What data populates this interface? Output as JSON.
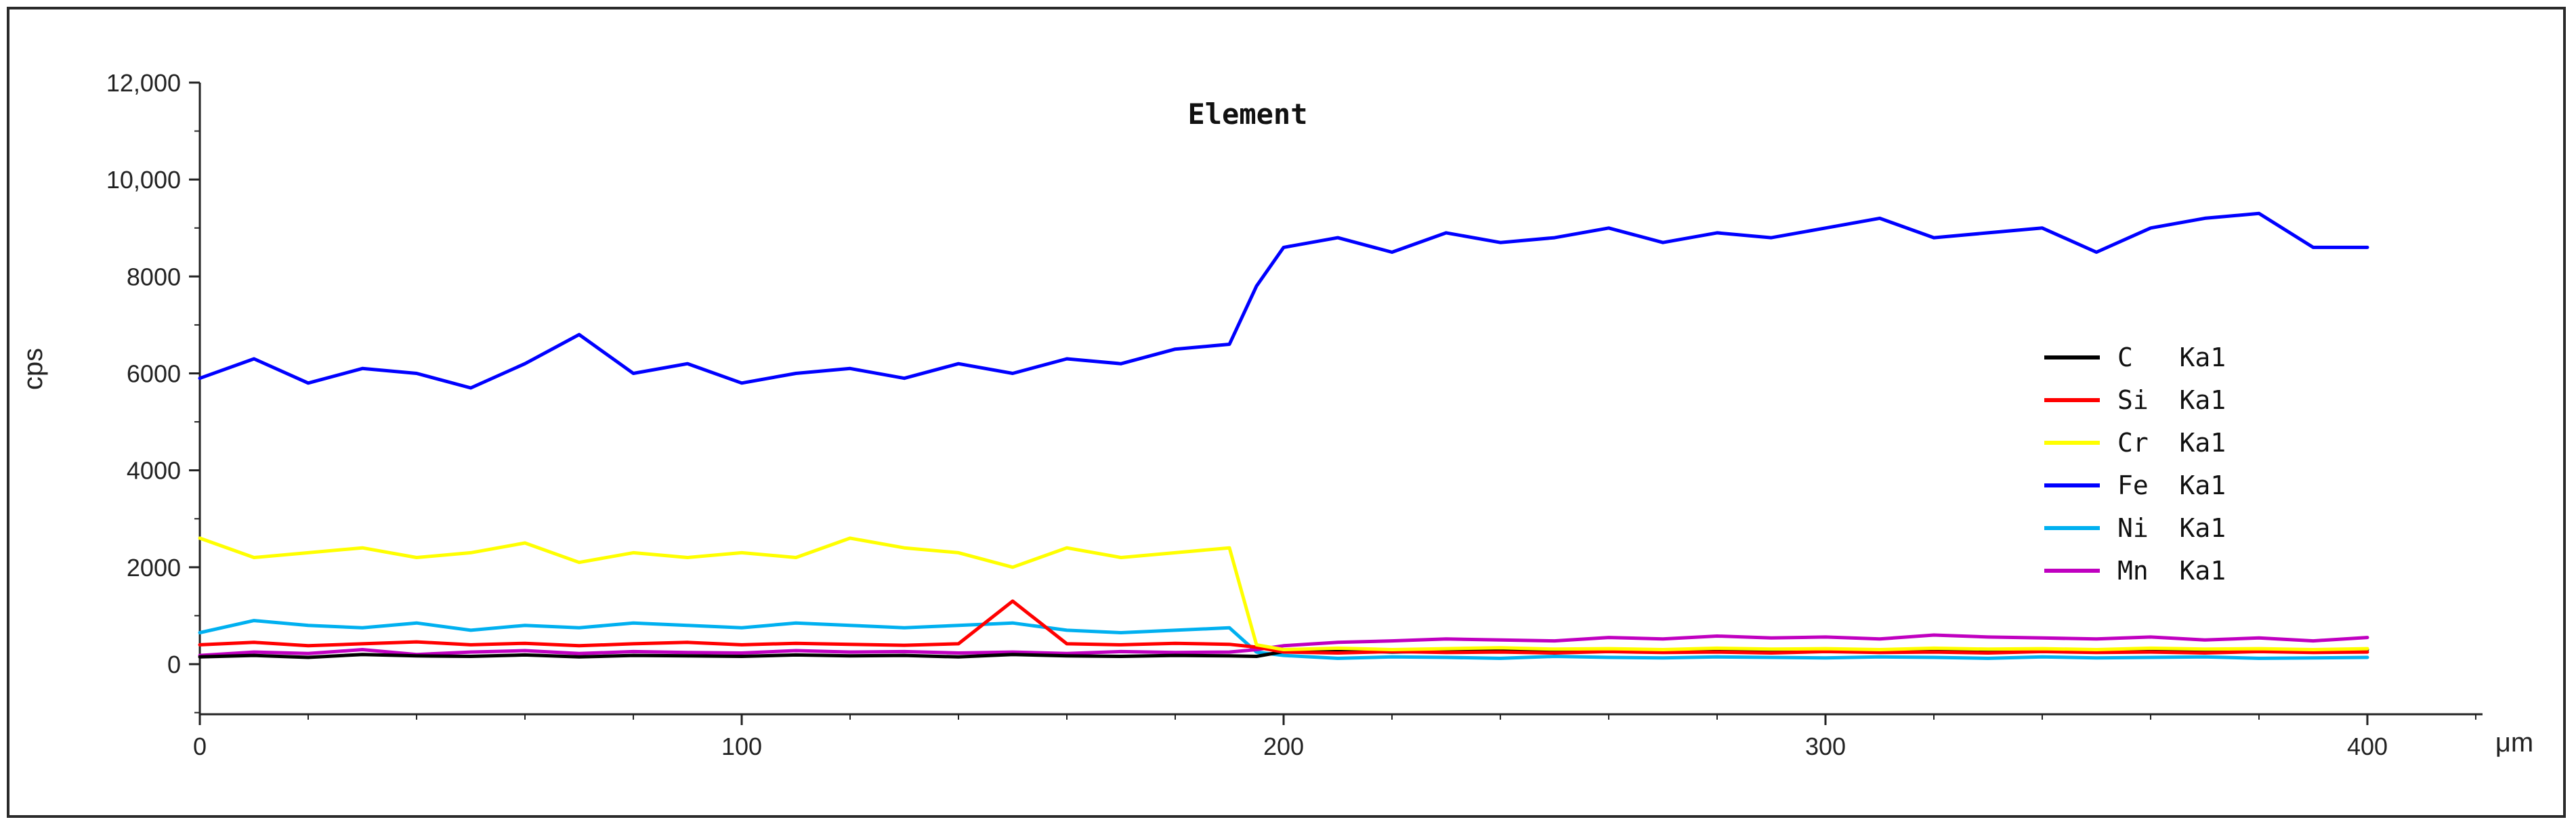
{
  "chart_data": {
    "type": "line",
    "title": "Element",
    "xlabel": "μm",
    "ylabel": "cps",
    "xlim": [
      0,
      420
    ],
    "ylim": [
      -1000,
      12000
    ],
    "x_ticks": [
      0,
      100,
      200,
      300,
      400
    ],
    "y_ticks": [
      0,
      2000,
      4000,
      6000,
      8000,
      10000,
      12000
    ],
    "y_tick_labels": [
      "0",
      "2000",
      "4000",
      "6000",
      "8000",
      "10,000",
      "12,000"
    ],
    "grid": false,
    "legend_position": "right",
    "x": [
      0,
      10,
      20,
      30,
      40,
      50,
      60,
      70,
      80,
      90,
      100,
      110,
      120,
      130,
      140,
      150,
      160,
      170,
      180,
      190,
      195,
      200,
      210,
      220,
      230,
      240,
      250,
      260,
      270,
      280,
      290,
      300,
      310,
      320,
      330,
      340,
      350,
      360,
      370,
      380,
      390,
      400
    ],
    "series": [
      {
        "name": "C   Ka1",
        "color": "#000000",
        "values": [
          150,
          180,
          140,
          200,
          170,
          160,
          190,
          150,
          180,
          170,
          160,
          190,
          170,
          180,
          150,
          200,
          170,
          160,
          180,
          170,
          160,
          260,
          280,
          250,
          270,
          290,
          260,
          280,
          270,
          290,
          260,
          280,
          270,
          300,
          280,
          270,
          290,
          260,
          280,
          270,
          290,
          300
        ]
      },
      {
        "name": "Si  Ka1",
        "color": "#ff0000",
        "values": [
          400,
          450,
          380,
          420,
          460,
          400,
          430,
          380,
          420,
          450,
          400,
          430,
          410,
          390,
          420,
          1300,
          420,
          400,
          430,
          410,
          350,
          250,
          230,
          260,
          240,
          250,
          230,
          260,
          240,
          250,
          230,
          260,
          240,
          250,
          230,
          260,
          240,
          250,
          230,
          260,
          240,
          250
        ]
      },
      {
        "name": "Cr  Ka1",
        "color": "#ffff00",
        "values": [
          2600,
          2200,
          2300,
          2400,
          2200,
          2300,
          2500,
          2100,
          2300,
          2200,
          2300,
          2200,
          2600,
          2400,
          2300,
          2000,
          2400,
          2200,
          2300,
          2400,
          400,
          300,
          330,
          300,
          320,
          340,
          310,
          320,
          300,
          330,
          310,
          320,
          300,
          330,
          310,
          320,
          300,
          330,
          310,
          320,
          300,
          320
        ]
      },
      {
        "name": "Fe  Ka1",
        "color": "#0000ff",
        "values": [
          5900,
          6300,
          5800,
          6100,
          6000,
          5700,
          6200,
          6800,
          6000,
          6200,
          5800,
          6000,
          6100,
          5900,
          6200,
          6000,
          6300,
          6200,
          6500,
          6600,
          7800,
          8600,
          8800,
          8500,
          8900,
          8700,
          8800,
          9000,
          8700,
          8900,
          8800,
          9000,
          9200,
          8800,
          8900,
          9000,
          8500,
          9000,
          9200,
          9300,
          8600,
          8600
        ]
      },
      {
        "name": "Ni  Ka1",
        "color": "#00b0f0",
        "values": [
          650,
          900,
          800,
          750,
          850,
          700,
          800,
          750,
          850,
          800,
          750,
          850,
          800,
          750,
          800,
          850,
          700,
          650,
          700,
          750,
          250,
          180,
          120,
          150,
          140,
          120,
          160,
          140,
          130,
          150,
          140,
          130,
          150,
          140,
          120,
          150,
          130,
          140,
          150,
          120,
          130,
          140
        ]
      },
      {
        "name": "Mn  Ka1",
        "color": "#c000c0",
        "values": [
          180,
          250,
          220,
          300,
          200,
          250,
          280,
          220,
          260,
          240,
          230,
          280,
          250,
          260,
          230,
          250,
          220,
          260,
          240,
          250,
          300,
          380,
          450,
          480,
          520,
          500,
          480,
          550,
          520,
          580,
          540,
          560,
          520,
          600,
          560,
          540,
          520,
          560,
          500,
          540,
          480,
          550
        ]
      }
    ]
  }
}
